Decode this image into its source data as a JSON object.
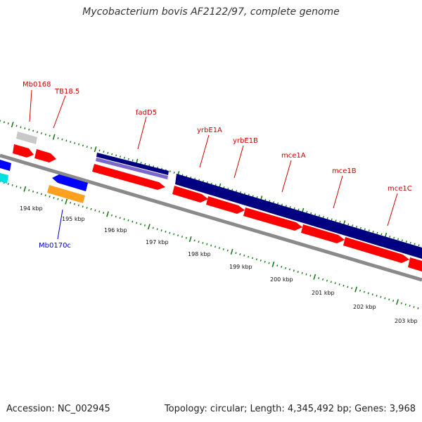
{
  "title": "Mycobacterium bovis AF2122/97, complete genome",
  "accession": "Accession: NC_002945",
  "summary": "Topology: circular; Length: 4,345,492 bp; Genes: 3,968",
  "colors": {
    "backbone": "#8a8a8a",
    "cds_forward": "#ff0000",
    "cds_reverse": "#0000ff",
    "blast_dark": "#000080",
    "blast_light": "#7b68cc",
    "grey_feature": "#c8c8c8",
    "orange_feature": "#ffa020",
    "cyan_feature": "#00e0e0",
    "tick": "#1a7a1a",
    "label_forward": "#cc0000",
    "label_reverse": "#0000cc"
  },
  "scale_labels": [
    "194 kbp",
    "195 kbp",
    "196 kbp",
    "197 kbp",
    "198 kbp",
    "199 kbp",
    "200 kbp",
    "201 kbp",
    "202 kbp",
    "203 kbp"
  ],
  "gene_labels": [
    {
      "name": "Mb0168",
      "strand": "forward"
    },
    {
      "name": "TB18.5",
      "strand": "forward"
    },
    {
      "name": "fadD5",
      "strand": "forward"
    },
    {
      "name": "yrbE1A",
      "strand": "forward"
    },
    {
      "name": "yrbE1B",
      "strand": "forward"
    },
    {
      "name": "mce1A",
      "strand": "forward"
    },
    {
      "name": "mce1B",
      "strand": "forward"
    },
    {
      "name": "mce1C",
      "strand": "forward"
    },
    {
      "name": "Mb0170c",
      "strand": "reverse"
    }
  ]
}
